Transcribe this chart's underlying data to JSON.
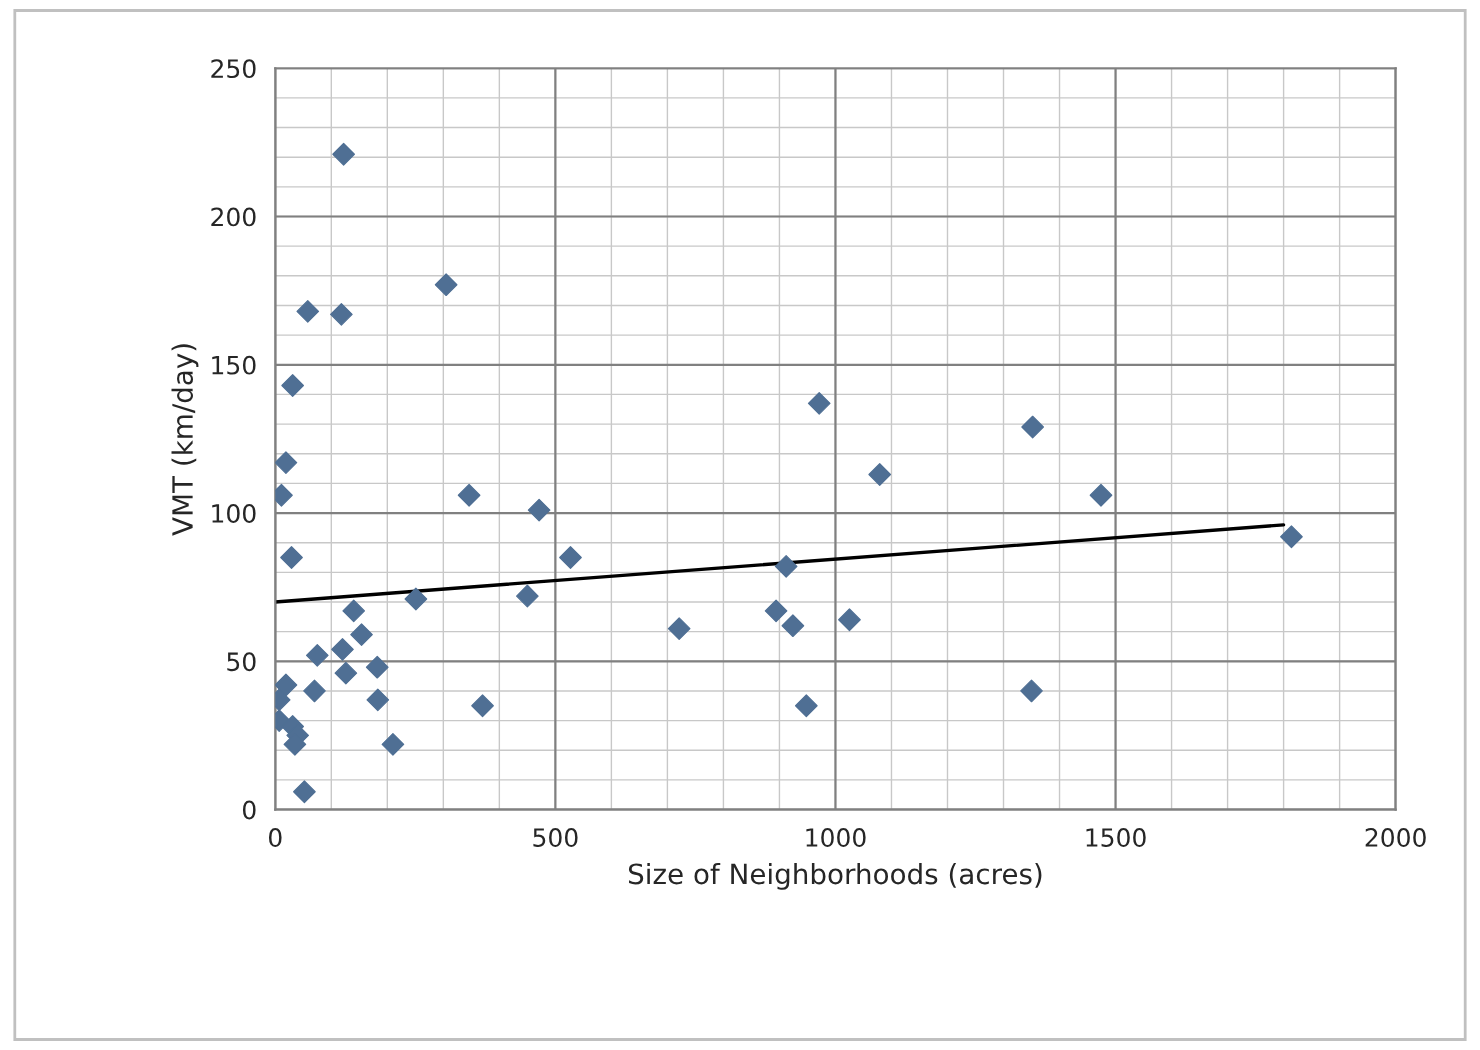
{
  "chart_data": {
    "type": "scatter",
    "xlabel": "Size of Neighborhoods (acres)",
    "ylabel": "VMT (km/day)",
    "xlim": [
      0,
      2000
    ],
    "xticks": [
      0,
      500,
      1000,
      1500,
      2000
    ],
    "ylim": [
      0,
      250
    ],
    "yticks": [
      0,
      50,
      100,
      150,
      200,
      250
    ],
    "grid": true,
    "marker": "diamond",
    "series": [
      {
        "color": "#4f6f94",
        "x": [
          122,
          305,
          58,
          118,
          31,
          19,
          11,
          29,
          346,
          471,
          527,
          450,
          251,
          140,
          154,
          75,
          120,
          126,
          182,
          19,
          70,
          7,
          183,
          7,
          31,
          40,
          35,
          210,
          370,
          52,
          721,
          912,
          894,
          924,
          1025,
          948,
          971,
          1079,
          1352,
          1474,
          1814,
          1350
        ],
        "values": [
          221,
          177,
          168,
          167,
          143,
          117,
          106,
          85,
          106,
          101,
          85,
          72,
          71,
          67,
          59,
          52,
          54,
          46,
          48,
          42,
          40,
          37,
          37,
          30,
          28,
          25,
          22,
          22,
          35,
          6,
          61,
          82,
          67,
          62,
          64,
          35,
          137,
          113,
          129,
          106,
          92,
          40
        ]
      },
      {
        "type": "line",
        "color": "#000000",
        "x": [
          0,
          1800
        ],
        "values": [
          70,
          96
        ],
        "marker": "none"
      }
    ]
  }
}
